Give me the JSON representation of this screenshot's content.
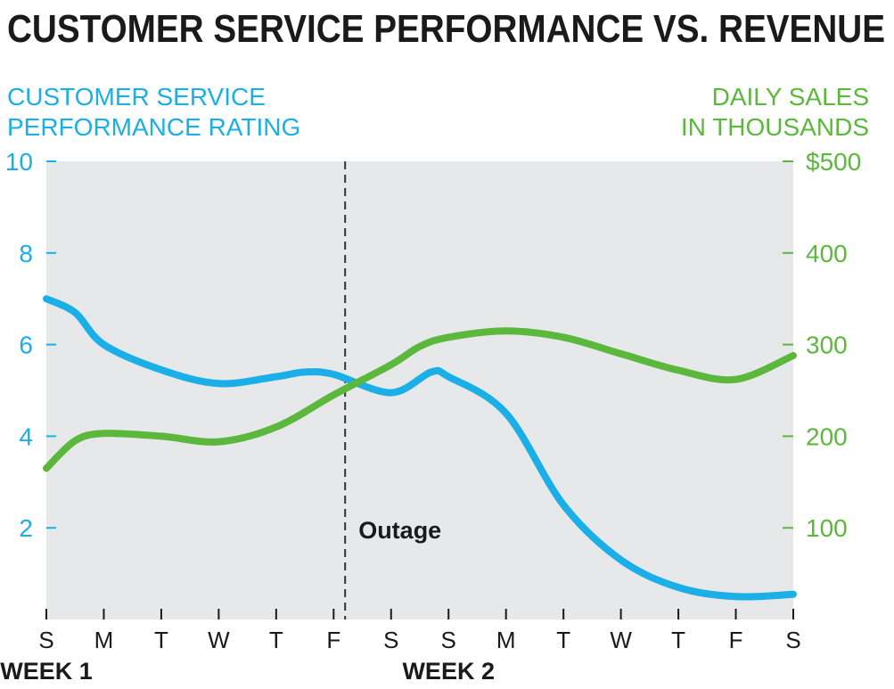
{
  "chart_data": {
    "type": "line",
    "title": "CUSTOMER SERVICE PERFORMANCE VS. REVENUE",
    "left_axis": {
      "label_lines": [
        "CUSTOMER SERVICE",
        "PERFORMANCE RATING"
      ],
      "range": [
        0,
        10
      ],
      "ticks": [
        {
          "value": 2,
          "label": "2"
        },
        {
          "value": 4,
          "label": "4"
        },
        {
          "value": 6,
          "label": "6"
        },
        {
          "value": 8,
          "label": "8"
        },
        {
          "value": 10,
          "label": "10"
        }
      ]
    },
    "right_axis": {
      "label_lines": [
        "DAILY SALES",
        "IN THOUSANDS"
      ],
      "range": [
        0,
        500
      ],
      "ticks": [
        {
          "value": 100,
          "label": "100"
        },
        {
          "value": 200,
          "label": "200"
        },
        {
          "value": 300,
          "label": "300"
        },
        {
          "value": 400,
          "label": "400"
        },
        {
          "value": 500,
          "label": "$500"
        }
      ]
    },
    "x": {
      "categories": [
        "S",
        "M",
        "T",
        "W",
        "T",
        "F",
        "S",
        "S",
        "M",
        "T",
        "W",
        "T",
        "F",
        "S"
      ],
      "groups": [
        {
          "label": "WEEK 1",
          "start_index": 0
        },
        {
          "label": "WEEK 2",
          "start_index": 7
        }
      ]
    },
    "series": [
      {
        "name": "Customer service performance rating",
        "axis": "left",
        "color": "#1aafe6",
        "points": [
          [
            0,
            7.0
          ],
          [
            0.5,
            6.7
          ],
          [
            1,
            6.0
          ],
          [
            2,
            5.45
          ],
          [
            3,
            5.15
          ],
          [
            4,
            5.3
          ],
          [
            4.5,
            5.4
          ],
          [
            5,
            5.35
          ],
          [
            6,
            4.95
          ],
          [
            6.7,
            5.4
          ],
          [
            7,
            5.3
          ],
          [
            8,
            4.5
          ],
          [
            9,
            2.5
          ],
          [
            10,
            1.3
          ],
          [
            11,
            0.7
          ],
          [
            12,
            0.5
          ],
          [
            13,
            0.55
          ]
        ]
      },
      {
        "name": "Daily sales in thousands",
        "axis": "right",
        "color": "#5cb83c",
        "points": [
          [
            0,
            165
          ],
          [
            0.5,
            195
          ],
          [
            1,
            203
          ],
          [
            2,
            200
          ],
          [
            3,
            194
          ],
          [
            4,
            210
          ],
          [
            5,
            245
          ],
          [
            6,
            278
          ],
          [
            6.5,
            298
          ],
          [
            7,
            308
          ],
          [
            8,
            315
          ],
          [
            9,
            308
          ],
          [
            10,
            290
          ],
          [
            11,
            272
          ],
          [
            12,
            262
          ],
          [
            13,
            288
          ]
        ]
      }
    ],
    "annotation": {
      "label": "Outage",
      "x": 5.2
    }
  }
}
